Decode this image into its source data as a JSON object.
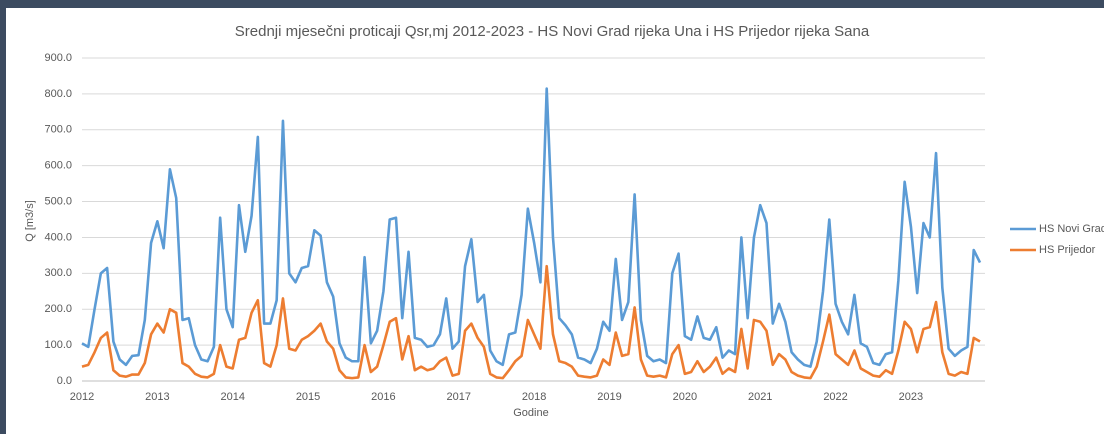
{
  "chart_data": {
    "type": "line",
    "title": "Srednji mjesečni proticaji Qsr,mj 2012-2023 - HS Novi Grad rijeka Una i HS Prijedor rijeka Sana",
    "y_label": "Q [m3/s]",
    "x_label": "Godine",
    "categories": [
      "2012",
      null,
      null,
      null,
      null,
      null,
      null,
      null,
      null,
      null,
      null,
      null,
      "2013",
      null,
      null,
      null,
      null,
      null,
      null,
      null,
      null,
      null,
      null,
      null,
      "2014",
      null,
      null,
      null,
      null,
      null,
      null,
      null,
      null,
      null,
      null,
      null,
      "2015",
      null,
      null,
      null,
      null,
      null,
      null,
      null,
      null,
      null,
      null,
      null,
      "2016",
      null,
      null,
      null,
      null,
      null,
      null,
      null,
      null,
      null,
      null,
      null,
      "2017",
      null,
      null,
      null,
      null,
      null,
      null,
      null,
      null,
      null,
      null,
      null,
      "2018",
      null,
      null,
      null,
      null,
      null,
      null,
      null,
      null,
      null,
      null,
      null,
      "2019",
      null,
      null,
      null,
      null,
      null,
      null,
      null,
      null,
      null,
      null,
      null,
      "2020",
      null,
      null,
      null,
      null,
      null,
      null,
      null,
      null,
      null,
      null,
      null,
      "2021",
      null,
      null,
      null,
      null,
      null,
      null,
      null,
      null,
      null,
      null,
      null,
      "2022",
      null,
      null,
      null,
      null,
      null,
      null,
      null,
      null,
      null,
      null,
      null,
      "2023",
      null,
      null,
      null,
      null,
      null,
      null,
      null,
      null,
      null,
      null,
      null
    ],
    "series": [
      {
        "name": "HS Novi Grad",
        "color": "#5b9bd5",
        "values": [
          105,
          95,
          200,
          300,
          315,
          110,
          60,
          45,
          70,
          72,
          170,
          385,
          445,
          370,
          590,
          510,
          170,
          175,
          100,
          60,
          55,
          95,
          455,
          200,
          150,
          490,
          360,
          460,
          680,
          160,
          160,
          225,
          725,
          300,
          275,
          315,
          320,
          420,
          405,
          275,
          235,
          105,
          65,
          55,
          55,
          345,
          105,
          140,
          250,
          450,
          455,
          175,
          360,
          120,
          115,
          95,
          100,
          130,
          230,
          90,
          110,
          320,
          395,
          220,
          240,
          85,
          55,
          45,
          130,
          135,
          240,
          480,
          385,
          275,
          815,
          400,
          175,
          155,
          130,
          65,
          60,
          50,
          90,
          165,
          140,
          340,
          170,
          220,
          520,
          170,
          70,
          55,
          60,
          50,
          300,
          355,
          125,
          115,
          180,
          120,
          115,
          150,
          65,
          85,
          75,
          400,
          175,
          400,
          490,
          440,
          160,
          215,
          165,
          80,
          60,
          45,
          40,
          110,
          250,
          450,
          215,
          165,
          130,
          240,
          105,
          95,
          50,
          45,
          75,
          80,
          280,
          555,
          430,
          245,
          440,
          400,
          635,
          260,
          90,
          70,
          85,
          95,
          365,
          330
        ]
      },
      {
        "name": "HS Prijedor",
        "color": "#ed7d31",
        "values": [
          40,
          45,
          80,
          120,
          135,
          30,
          15,
          12,
          18,
          18,
          50,
          130,
          160,
          135,
          200,
          190,
          50,
          40,
          20,
          12,
          10,
          20,
          100,
          40,
          35,
          115,
          120,
          190,
          225,
          50,
          40,
          100,
          230,
          90,
          85,
          115,
          125,
          140,
          160,
          110,
          90,
          30,
          10,
          8,
          10,
          100,
          25,
          40,
          100,
          165,
          175,
          60,
          125,
          30,
          40,
          30,
          35,
          55,
          65,
          15,
          20,
          140,
          160,
          120,
          95,
          20,
          10,
          8,
          30,
          55,
          70,
          170,
          130,
          90,
          320,
          130,
          55,
          50,
          40,
          15,
          12,
          10,
          15,
          60,
          45,
          135,
          70,
          75,
          205,
          60,
          15,
          12,
          15,
          10,
          75,
          100,
          20,
          25,
          55,
          25,
          40,
          65,
          20,
          35,
          25,
          145,
          35,
          170,
          165,
          140,
          45,
          75,
          60,
          25,
          15,
          10,
          8,
          40,
          110,
          185,
          75,
          60,
          45,
          85,
          35,
          25,
          15,
          12,
          30,
          20,
          85,
          165,
          145,
          80,
          145,
          150,
          220,
          80,
          20,
          15,
          25,
          20,
          120,
          110
        ]
      }
    ],
    "ylim": [
      0,
      900
    ],
    "yticks": [
      {
        "value": 0,
        "label": "0.0"
      },
      {
        "value": 100,
        "label": "100.0"
      },
      {
        "value": 200,
        "label": "200.0"
      },
      {
        "value": 300,
        "label": "300.0"
      },
      {
        "value": 400,
        "label": "400.0"
      },
      {
        "value": 500,
        "label": "500.0"
      },
      {
        "value": 600,
        "label": "600.0"
      },
      {
        "value": 700,
        "label": "700.0"
      },
      {
        "value": 800,
        "label": "800.0"
      },
      {
        "value": 900,
        "label": "900.0"
      }
    ],
    "grid": true,
    "legend": "right"
  }
}
